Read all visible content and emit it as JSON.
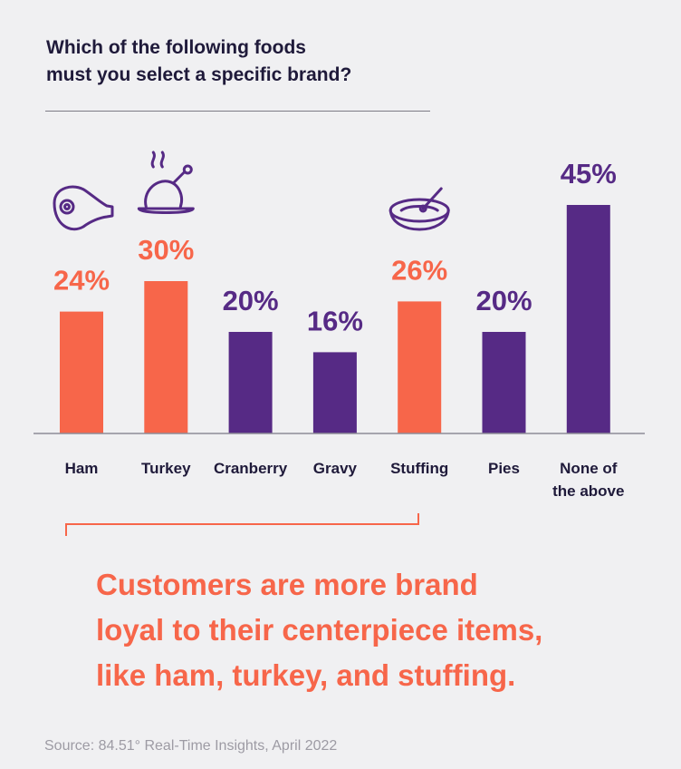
{
  "title_line1": "Which of the following foods",
  "title_line2": "must you select a specific brand?",
  "callout": {
    "line1": "Customers are more brand",
    "line2": "loyal to their centerpiece items,",
    "line3": "like ham, turkey, and stuffing."
  },
  "source": "Source: 84.51° Real-Time Insights, April 2022",
  "colors": {
    "highlight": "#f7664a",
    "default": "#562a85",
    "text": "#1f1a3a"
  },
  "chart_data": {
    "type": "bar",
    "title": "Which of the following foods must you select a specific brand?",
    "categories": [
      "Ham",
      "Turkey",
      "Cranberry",
      "Gravy",
      "Stuffing",
      "Pies",
      "None of the above"
    ],
    "category_lines": [
      [
        "Ham"
      ],
      [
        "Turkey"
      ],
      [
        "Cranberry"
      ],
      [
        "Gravy"
      ],
      [
        "Stuffing"
      ],
      [
        "Pies"
      ],
      [
        "None of",
        "the above"
      ]
    ],
    "values": [
      24,
      30,
      20,
      16,
      26,
      20,
      45
    ],
    "value_labels": [
      "24%",
      "30%",
      "20%",
      "16%",
      "26%",
      "20%",
      "45%"
    ],
    "highlighted": [
      true,
      true,
      false,
      false,
      true,
      false,
      false
    ],
    "icons": [
      "ham-icon",
      "turkey-icon",
      null,
      null,
      "stuffing-bowl-icon",
      null,
      null
    ],
    "ylim": [
      0,
      45
    ],
    "grid": false,
    "legend": "none"
  }
}
